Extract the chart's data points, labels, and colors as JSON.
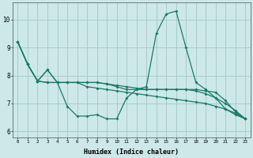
{
  "xlabel": "Humidex (Indice chaleur)",
  "xlim": [
    -0.5,
    23.5
  ],
  "ylim": [
    5.8,
    10.6
  ],
  "yticks": [
    6,
    7,
    8,
    9,
    10
  ],
  "xticks": [
    0,
    1,
    2,
    3,
    4,
    5,
    6,
    7,
    8,
    9,
    10,
    11,
    12,
    13,
    14,
    15,
    16,
    17,
    18,
    19,
    20,
    21,
    22,
    23
  ],
  "bg_color": "#cce8e8",
  "grid_color": "#aacccc",
  "line_color": "#1a7a6a",
  "lines": [
    {
      "x": [
        0,
        1,
        2,
        3,
        4,
        5,
        6,
        7,
        8,
        9,
        10,
        11,
        12,
        13,
        14,
        15,
        16,
        17,
        18,
        19,
        20,
        21,
        22,
        23
      ],
      "y": [
        9.2,
        8.4,
        7.8,
        8.2,
        7.75,
        6.9,
        6.55,
        6.55,
        6.6,
        6.45,
        6.45,
        7.2,
        7.5,
        7.6,
        9.5,
        10.2,
        10.3,
        9.0,
        7.75,
        7.5,
        7.2,
        6.8,
        6.6,
        6.45
      ]
    },
    {
      "x": [
        0,
        1,
        2,
        3,
        4,
        5,
        6,
        7,
        8,
        9,
        10,
        11,
        12,
        13,
        14,
        15,
        16,
        17,
        18,
        19,
        20,
        21,
        22,
        23
      ],
      "y": [
        9.2,
        8.4,
        7.8,
        8.2,
        7.75,
        7.75,
        7.75,
        7.75,
        7.75,
        7.7,
        7.6,
        7.5,
        7.5,
        7.5,
        7.5,
        7.5,
        7.5,
        7.5,
        7.5,
        7.45,
        7.4,
        7.1,
        6.7,
        6.45
      ]
    },
    {
      "x": [
        0,
        1,
        2,
        3,
        4,
        5,
        6,
        7,
        8,
        9,
        10,
        11,
        12,
        13,
        14,
        15,
        16,
        17,
        18,
        19,
        20,
        21,
        22,
        23
      ],
      "y": [
        9.2,
        8.4,
        7.8,
        7.75,
        7.75,
        7.75,
        7.75,
        7.75,
        7.75,
        7.7,
        7.65,
        7.6,
        7.55,
        7.5,
        7.5,
        7.5,
        7.5,
        7.5,
        7.45,
        7.35,
        7.2,
        7.0,
        6.75,
        6.45
      ]
    },
    {
      "x": [
        0,
        1,
        2,
        3,
        4,
        5,
        6,
        7,
        8,
        9,
        10,
        11,
        12,
        13,
        14,
        15,
        16,
        17,
        18,
        19,
        20,
        21,
        22,
        23
      ],
      "y": [
        9.2,
        8.4,
        7.8,
        7.75,
        7.75,
        7.75,
        7.75,
        7.6,
        7.55,
        7.5,
        7.45,
        7.4,
        7.35,
        7.3,
        7.25,
        7.2,
        7.15,
        7.1,
        7.05,
        7.0,
        6.9,
        6.8,
        6.65,
        6.45
      ]
    }
  ]
}
